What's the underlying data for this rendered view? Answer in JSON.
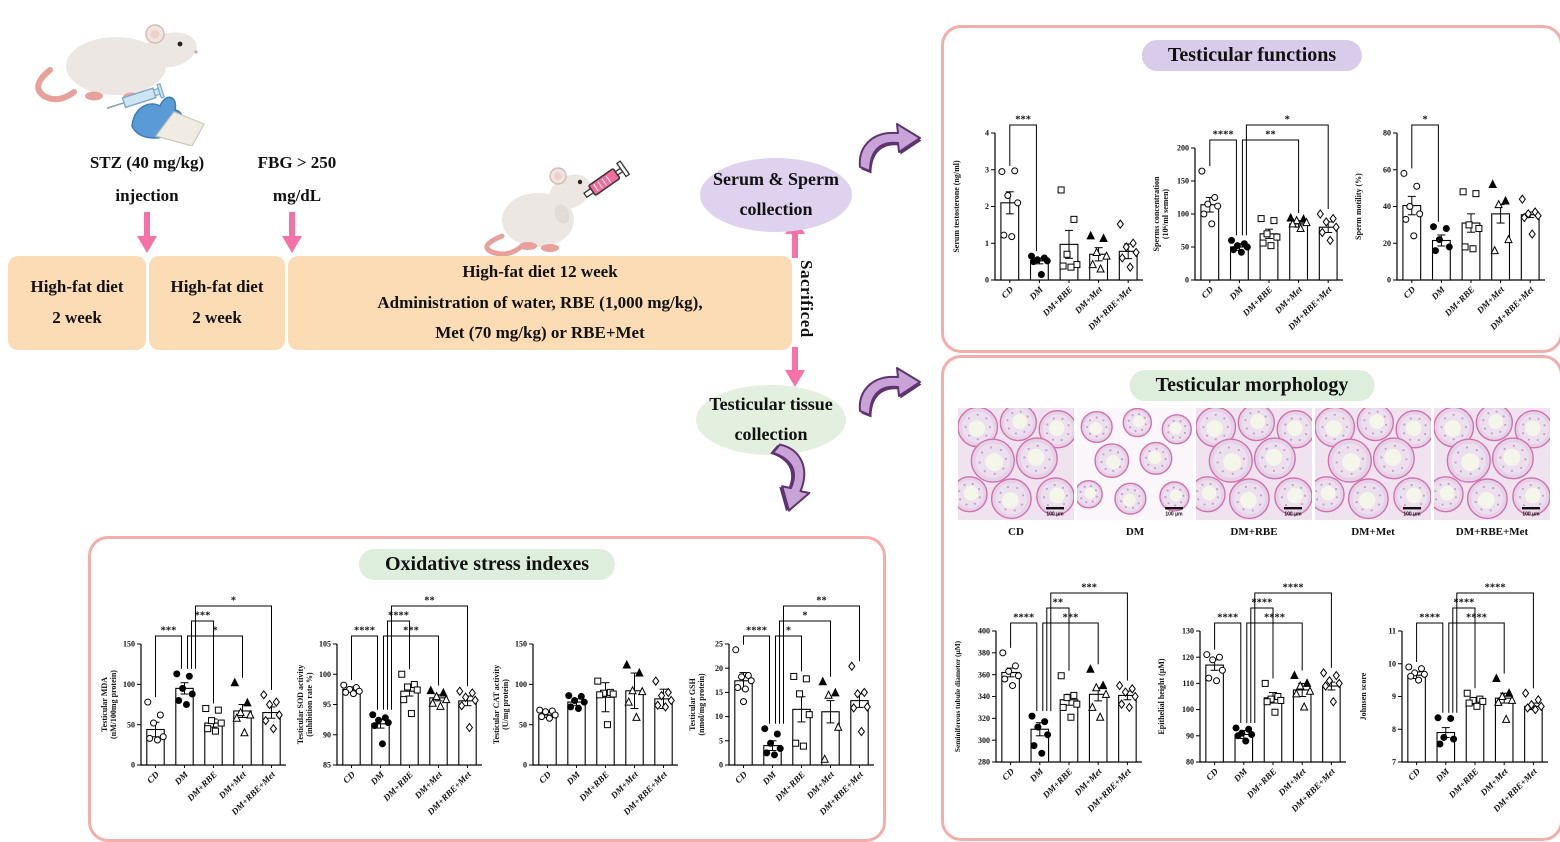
{
  "colors": {
    "panel_border": "#f4aeaa",
    "timeline_box": "#fbdcb4",
    "arrow_pink": "#f472a6",
    "oval_purple": "#ded2ee",
    "oval_green": "#e3f0e0",
    "pill_purple": "#d9cceb",
    "pill_green": "#ddeedd",
    "curved_arrow_fill": "#c9a3d8",
    "curved_arrow_stroke": "#5f3370"
  },
  "flow": {
    "stz_lines": [
      "STZ (40 mg/kg)",
      "injection"
    ],
    "fbg_lines": [
      "FBG > 250",
      "mg/dL"
    ],
    "timeline": [
      {
        "lines": [
          "High-fat diet",
          "2 week"
        ]
      },
      {
        "lines": [
          "High-fat diet",
          "2 week"
        ]
      },
      {
        "lines": [
          "High-fat diet 12 week",
          "Administration of water, RBE (1,000 mg/kg),",
          "Met (70 mg/kg) or RBE+Met"
        ]
      }
    ],
    "serum_oval_lines": [
      "Serum & Sperm",
      "collection"
    ],
    "sacrificed_label": "Sacrificed",
    "tissue_oval_lines": [
      "Testicular tissue",
      "collection"
    ]
  },
  "groups": [
    "CD",
    "DM",
    "DM+RBE",
    "DM+Met",
    "DM+RBE+Met"
  ],
  "group_markers": [
    "circle-open",
    "circle-filled",
    "square-open",
    "triangle-mixed",
    "diamond-open"
  ],
  "panels": {
    "functions": {
      "title": "Testicular functions"
    },
    "oxidative": {
      "title": "Oxidative stress indexes"
    },
    "morphology": {
      "title": "Testicular morphology",
      "images": [
        {
          "label": "CD",
          "scale_label": "100 μm"
        },
        {
          "label": "DM",
          "scale_label": "100 μm"
        },
        {
          "label": "DM+RBE",
          "scale_label": "100 μm"
        },
        {
          "label": "DM+Met",
          "scale_label": "100 μm"
        },
        {
          "label": "DM+RBE+Met",
          "scale_label": "100 μm"
        }
      ]
    }
  },
  "chart_data": [
    {
      "id": "serum-testosterone",
      "panel": "functions",
      "type": "bar",
      "ylabel_lines": [
        "Serum testosterone (ng/ml)"
      ],
      "ylim": [
        0,
        4
      ],
      "yticks": [
        0,
        1,
        2,
        3,
        4
      ],
      "values": [
        2.1,
        0.52,
        0.97,
        0.7,
        0.78
      ],
      "errors": [
        0.3,
        0.08,
        0.38,
        0.18,
        0.2
      ],
      "points": [
        [
          2.95,
          2.97,
          2.3,
          2.1,
          1.22,
          1.18
        ],
        [
          0.65,
          0.6,
          0.55,
          0.52,
          0.5,
          0.15
        ],
        [
          2.45,
          1.65,
          0.7,
          0.42,
          0.38,
          0.35
        ],
        [
          1.2,
          1.13,
          0.75,
          0.65,
          0.42,
          0.3
        ],
        [
          1.52,
          1.0,
          0.9,
          0.75,
          0.6,
          0.35
        ]
      ],
      "sig": [
        {
          "a": 0,
          "b": 1,
          "label": "***",
          "level": 1
        }
      ]
    },
    {
      "id": "sperm-concentration",
      "panel": "functions",
      "type": "bar",
      "ylabel_lines": [
        "Sperms concentration",
        "(10⁶/ml semen)"
      ],
      "ylim": [
        0,
        200
      ],
      "yticks": [
        0,
        50,
        100,
        150,
        200
      ],
      "values": [
        114,
        50,
        70,
        85,
        80
      ],
      "errors": [
        11,
        5,
        7,
        5,
        8
      ],
      "points": [
        [
          165,
          125,
          115,
          112,
          100,
          85
        ],
        [
          60,
          55,
          52,
          50,
          46,
          42
        ],
        [
          93,
          90,
          70,
          65,
          56,
          52
        ],
        [
          94,
          92,
          90,
          87,
          85,
          78
        ],
        [
          100,
          93,
          88,
          80,
          72,
          60
        ]
      ],
      "sig": [
        {
          "a": 0,
          "b": 1,
          "label": "****",
          "level": 1
        },
        {
          "a": 1,
          "b": 3,
          "label": "**",
          "level": 1
        },
        {
          "a": 1,
          "b": 4,
          "label": "*",
          "level": 2
        }
      ]
    },
    {
      "id": "sperm-motility",
      "panel": "functions",
      "type": "bar",
      "ylabel_lines": [
        "Sperm motility (%)"
      ],
      "ylim": [
        0,
        80
      ],
      "yticks": [
        0,
        20,
        40,
        60,
        80
      ],
      "values": [
        40.5,
        21.5,
        31,
        36,
        35.5
      ],
      "errors": [
        5,
        3,
        5,
        5,
        1.5
      ],
      "points": [
        [
          58,
          51,
          40,
          36,
          33,
          24
        ],
        [
          29,
          28,
          22,
          18,
          16
        ],
        [
          48,
          47,
          30,
          28,
          18,
          17
        ],
        [
          52,
          43,
          41,
          22,
          16
        ],
        [
          44,
          37,
          36,
          35,
          34,
          25
        ]
      ],
      "sig": [
        {
          "a": 0,
          "b": 1,
          "label": "*",
          "level": 1
        }
      ]
    },
    {
      "id": "testicular-mda",
      "panel": "oxidative",
      "type": "bar",
      "ylabel_lines": [
        "Testicular MDA",
        "(nM/100mg protein)"
      ],
      "ylim": [
        0,
        150
      ],
      "yticks": [
        0,
        50,
        100,
        150
      ],
      "values": [
        44,
        95,
        52,
        67,
        65
      ],
      "errors": [
        9,
        7,
        5,
        8,
        7
      ],
      "points": [
        [
          78,
          62,
          52,
          35,
          33,
          31
        ],
        [
          113,
          110,
          95,
          88,
          80,
          75
        ],
        [
          70,
          68,
          55,
          52,
          45,
          42
        ],
        [
          102,
          77,
          65,
          62,
          58,
          40
        ],
        [
          87,
          78,
          75,
          62,
          55,
          45
        ]
      ],
      "sig": [
        {
          "a": 0,
          "b": 1,
          "label": "***",
          "level": 1
        },
        {
          "a": 1,
          "b": 2,
          "label": "***",
          "level": 2
        },
        {
          "a": 1,
          "b": 3,
          "label": "*",
          "level": 1
        },
        {
          "a": 1,
          "b": 4,
          "label": "*",
          "level": 3
        }
      ]
    },
    {
      "id": "testicular-sod",
      "panel": "oxidative",
      "type": "bar",
      "ylabel_lines": [
        "Testicular SOD activity",
        "(inhibition rate %)"
      ],
      "ylim": [
        85,
        105
      ],
      "yticks": [
        85,
        90,
        95,
        100,
        105
      ],
      "values": [
        97.5,
        91.8,
        97.2,
        96.1,
        95.6
      ],
      "errors": [
        0.4,
        0.7,
        0.8,
        0.5,
        0.8
      ],
      "points": [
        [
          98.2,
          97.8,
          97.5,
          97.2,
          97.0,
          96.8
        ],
        [
          93.3,
          92.8,
          92.4,
          92.0,
          91.5,
          88.5
        ],
        [
          100,
          98.3,
          97.9,
          97.4,
          95.8,
          93.5
        ],
        [
          97.3,
          96.9,
          96.3,
          95.8,
          95.2,
          94.7
        ],
        [
          97.2,
          96.9,
          96.2,
          95.7,
          94.8,
          91.2
        ]
      ],
      "sig": [
        {
          "a": 0,
          "b": 1,
          "label": "****",
          "level": 1
        },
        {
          "a": 1,
          "b": 2,
          "label": "****",
          "level": 2
        },
        {
          "a": 1,
          "b": 3,
          "label": "***",
          "level": 1
        },
        {
          "a": 1,
          "b": 4,
          "label": "**",
          "level": 3
        }
      ]
    },
    {
      "id": "testicular-cat",
      "panel": "oxidative",
      "type": "bar",
      "top_extra": 45,
      "ylabel_lines": [
        "Testicular CAT activity",
        "(U/mg protein)"
      ],
      "ylim": [
        0,
        150
      ],
      "yticks": [
        0,
        50,
        100,
        150
      ],
      "values": [
        62,
        78,
        84,
        92,
        82
      ],
      "errors": [
        3,
        4,
        18,
        22,
        12
      ],
      "points": [
        [
          68,
          67,
          66,
          62,
          60,
          58
        ],
        [
          86,
          85,
          80,
          78,
          72,
          70
        ],
        [
          104,
          90,
          89,
          88,
          87,
          50
        ],
        [
          124,
          114,
          92,
          91,
          78,
          59
        ],
        [
          104,
          90,
          86,
          80,
          74,
          72
        ]
      ],
      "sig": []
    },
    {
      "id": "testicular-gsh",
      "panel": "oxidative",
      "type": "bar",
      "ylabel_lines": [
        "Testicular GSH",
        "(nmol/mg protein)"
      ],
      "ylim": [
        0,
        25
      ],
      "yticks": [
        0,
        5,
        10,
        15,
        20,
        25
      ],
      "values": [
        17.4,
        4,
        11.5,
        11,
        13.3
      ],
      "errors": [
        1.7,
        1,
        2.6,
        2.3,
        1.4
      ],
      "points": [
        [
          23.8,
          18.5,
          18.2,
          17.4,
          16,
          15.7,
          13.1
        ],
        [
          7.5,
          6.4,
          4.5,
          3.4,
          2.5,
          2.1
        ],
        [
          18.3,
          17.8,
          14.7,
          10.4,
          4.5,
          3.9
        ],
        [
          17.2,
          14.9,
          14.4,
          7.8,
          1.2
        ],
        [
          20.4,
          15,
          14.7,
          12,
          11.8,
          6.9
        ]
      ],
      "sig": [
        {
          "a": 0,
          "b": 1,
          "label": "****",
          "level": 1
        },
        {
          "a": 1,
          "b": 2,
          "label": "*",
          "level": 1
        },
        {
          "a": 1,
          "b": 3,
          "label": "*",
          "level": 2
        },
        {
          "a": 1,
          "b": 4,
          "label": "**",
          "level": 3
        }
      ]
    },
    {
      "id": "seminiferous-tubule-diameter",
      "panel": "morphology",
      "type": "bar",
      "ylabel_small": true,
      "ylabel_lines": [
        "Seminiferous tubule diameter (μM)"
      ],
      "ylim": [
        280,
        400
      ],
      "yticks": [
        280,
        300,
        320,
        340,
        360,
        380,
        400
      ],
      "values": [
        362,
        310,
        337,
        342,
        341
      ],
      "errors": [
        4,
        6,
        5,
        6,
        4
      ],
      "points": [
        [
          380,
          368,
          363,
          359,
          356,
          350
        ],
        [
          322,
          317,
          312,
          305,
          295,
          288
        ],
        [
          359,
          341,
          339,
          333,
          330,
          321
        ],
        [
          365,
          350,
          348,
          342,
          330,
          321
        ],
        [
          350,
          347,
          344,
          340,
          333,
          330
        ]
      ],
      "sig": [
        {
          "a": 0,
          "b": 1,
          "label": "****",
          "level": 1
        },
        {
          "a": 1,
          "b": 2,
          "label": "**",
          "level": 2
        },
        {
          "a": 1,
          "b": 3,
          "label": "***",
          "level": 1
        },
        {
          "a": 1,
          "b": 4,
          "label": "***",
          "level": 3
        }
      ]
    },
    {
      "id": "epithelial-height",
      "panel": "morphology",
      "type": "bar",
      "ylabel_lines": [
        "Epithelial height (μM)"
      ],
      "ylim": [
        80,
        130
      ],
      "yticks": [
        80,
        90,
        100,
        110,
        120,
        130
      ],
      "values": [
        117,
        90.5,
        104.5,
        107.5,
        109
      ],
      "errors": [
        2,
        1.5,
        2,
        2.5,
        1.5
      ],
      "points": [
        [
          121,
          120,
          119,
          115,
          112,
          111
        ],
        [
          93,
          92.5,
          91,
          90.5,
          90,
          88
        ],
        [
          110,
          105,
          104,
          103.5,
          103,
          99
        ],
        [
          113,
          110,
          109,
          107,
          106,
          101
        ],
        [
          114,
          113,
          111,
          110,
          109,
          103
        ]
      ],
      "sig": [
        {
          "a": 0,
          "b": 1,
          "label": "****",
          "level": 1
        },
        {
          "a": 1,
          "b": 2,
          "label": "****",
          "level": 2
        },
        {
          "a": 1,
          "b": 3,
          "label": "****",
          "level": 1
        },
        {
          "a": 1,
          "b": 4,
          "label": "****",
          "level": 3
        }
      ]
    },
    {
      "id": "johnsen-score",
      "panel": "morphology",
      "type": "bar",
      "ylabel_lines": [
        "Johnsen score"
      ],
      "ylim": [
        7,
        11
      ],
      "yticks": [
        7,
        8,
        9,
        10,
        11
      ],
      "values": [
        9.65,
        7.9,
        8.85,
        8.95,
        8.7
      ],
      "errors": [
        0.1,
        0.15,
        0.1,
        0.15,
        0.1
      ],
      "points": [
        [
          9.9,
          9.85,
          9.72,
          9.68,
          9.62,
          9.5
        ],
        [
          8.35,
          8.33,
          7.75,
          7.7,
          7.55
        ],
        [
          9.1,
          8.92,
          8.88,
          8.85,
          8.8,
          8.7
        ],
        [
          9.55,
          9.1,
          9.0,
          8.88,
          8.82,
          8.3
        ],
        [
          9.1,
          8.9,
          8.75,
          8.7,
          8.65,
          8.6
        ]
      ],
      "sig": [
        {
          "a": 0,
          "b": 1,
          "label": "****",
          "level": 1
        },
        {
          "a": 1,
          "b": 2,
          "label": "****",
          "level": 2
        },
        {
          "a": 1,
          "b": 3,
          "label": "****",
          "level": 1
        },
        {
          "a": 1,
          "b": 4,
          "label": "****",
          "level": 3
        }
      ]
    }
  ]
}
